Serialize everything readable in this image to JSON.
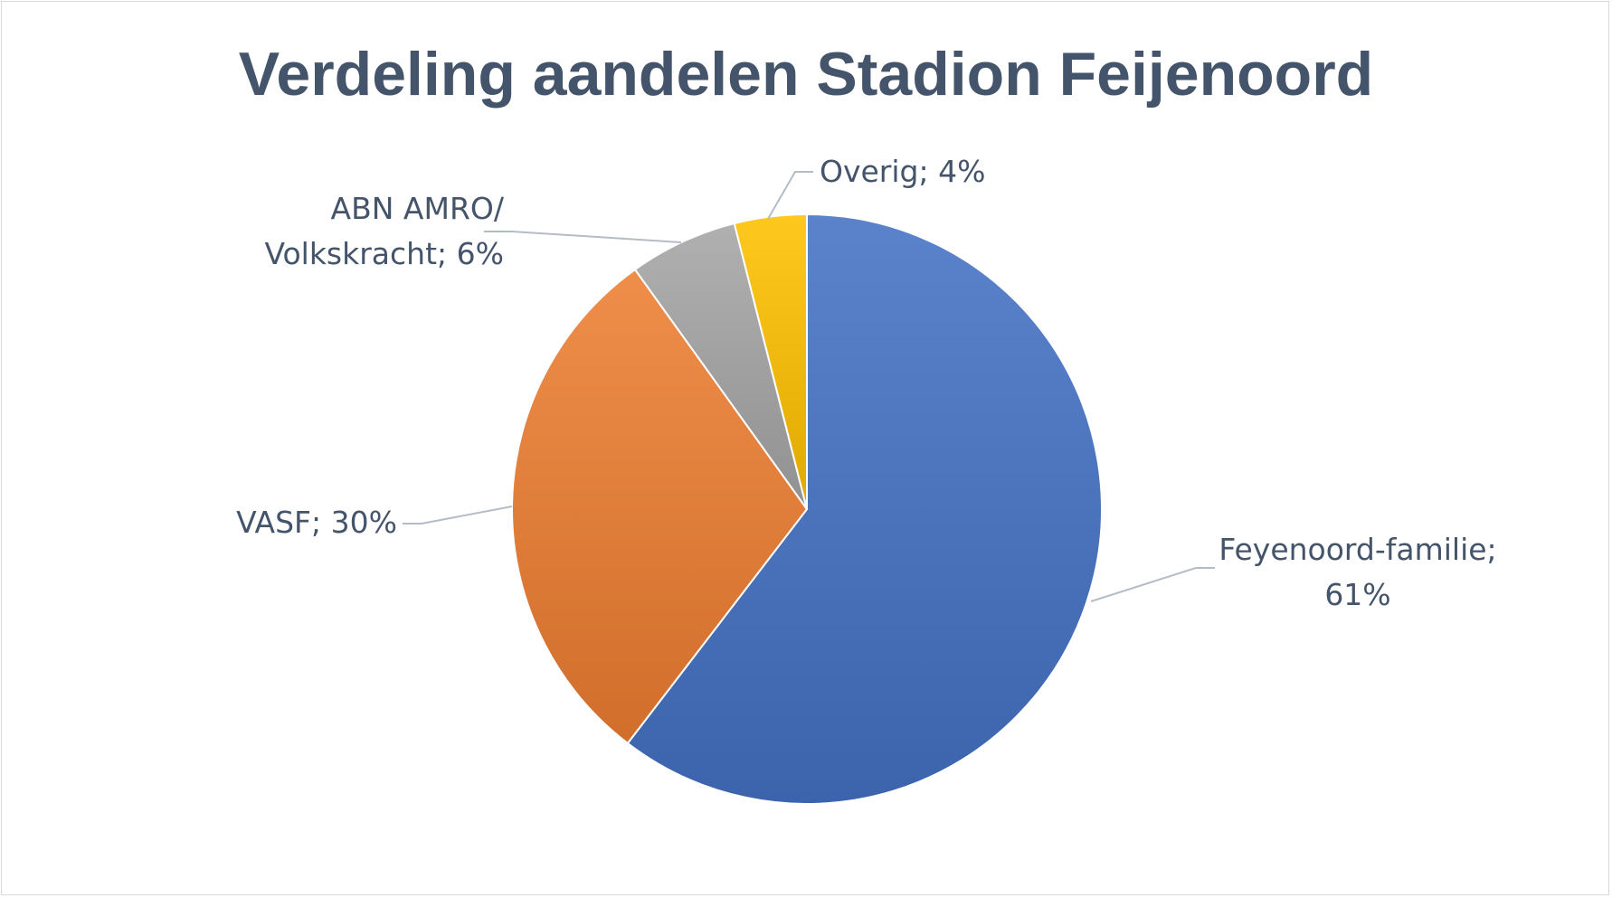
{
  "chart_data": {
    "type": "pie",
    "title": "Verdeling aandelen Stadion Feijenoord",
    "slices": [
      {
        "label": "Feyenoord-familie",
        "value": 61,
        "display": [
          "Feyenoord-familie;",
          "61%"
        ],
        "color": "#4472c4"
      },
      {
        "label": "VASF",
        "value": 30,
        "display": [
          "VASF; 30%"
        ],
        "color": "#ed7d31"
      },
      {
        "label": "ABN AMRO/ Volkskracht",
        "value": 6,
        "display": [
          "ABN AMRO/",
          "Volkskracht; 6%"
        ],
        "color": "#a5a5a5"
      },
      {
        "label": "Overig",
        "value": 4,
        "display": [
          "Overig; 4%"
        ],
        "color": "#ffc000"
      }
    ],
    "legend": "none",
    "grid": false
  }
}
